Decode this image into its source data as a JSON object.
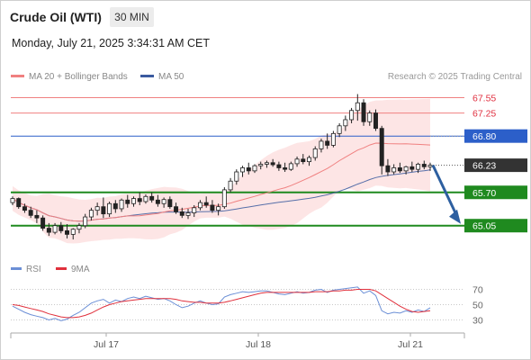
{
  "header": {
    "title": "Crude Oil (WTI)",
    "timeframe": "30 MIN",
    "timestamp": "Monday, July 21, 2025 3:34:31 AM CET"
  },
  "legend": {
    "ma20": "MA 20 + Bollinger Bands",
    "ma50": "MA 50",
    "credit": "Research © 2025 Trading Central"
  },
  "rsi_legend": {
    "rsi": "RSI",
    "ma": "9MA"
  },
  "colors": {
    "candle": "#222222",
    "up_candle": "#ffffff",
    "ma20": "#f08080",
    "bollinger_fill": "#fde0e0",
    "ma50": "#3a5a9f",
    "resistance": "#f08080",
    "pivot": "#2c5fc9",
    "support": "#1f8a1f",
    "current_price_tag": "#333333",
    "arrow": "#2d5fa0",
    "rsi": "#6b8fd6",
    "rsi_ma": "#e0303c"
  },
  "chart_data": [
    {
      "type": "candlestick",
      "x_ticks": [
        "Jul 17",
        "Jul 18",
        "Jul 21"
      ],
      "ylim": [
        64.5,
        67.7
      ],
      "levels": [
        {
          "label": "67.55",
          "value": 67.55,
          "kind": "resistance"
        },
        {
          "label": "67.25",
          "value": 67.25,
          "kind": "resistance"
        },
        {
          "label": "66.80",
          "value": 66.8,
          "kind": "pivot"
        },
        {
          "label": "66.23",
          "value": 66.23,
          "kind": "current"
        },
        {
          "label": "65.70",
          "value": 65.7,
          "kind": "support"
        },
        {
          "label": "65.05",
          "value": 65.05,
          "kind": "support"
        }
      ],
      "current_price": 66.23,
      "forecast_arrow": {
        "from": 66.23,
        "to": 65.05
      },
      "ohlc": [
        [
          65.5,
          65.62,
          65.45,
          65.58
        ],
        [
          65.58,
          65.6,
          65.38,
          65.42
        ],
        [
          65.42,
          65.48,
          65.3,
          65.35
        ],
        [
          65.35,
          65.42,
          65.2,
          65.25
        ],
        [
          65.25,
          65.35,
          65.1,
          65.2
        ],
        [
          65.2,
          65.25,
          64.95,
          65.0
        ],
        [
          65.0,
          65.1,
          64.85,
          64.92
        ],
        [
          64.92,
          65.1,
          64.88,
          65.05
        ],
        [
          65.05,
          65.12,
          64.9,
          64.95
        ],
        [
          64.95,
          65.08,
          64.8,
          64.88
        ],
        [
          64.88,
          65.0,
          64.78,
          64.98
        ],
        [
          64.98,
          65.1,
          64.9,
          65.05
        ],
        [
          65.05,
          65.28,
          65.0,
          65.22
        ],
        [
          65.22,
          65.4,
          65.15,
          65.35
        ],
        [
          65.35,
          65.5,
          65.25,
          65.42
        ],
        [
          65.42,
          65.6,
          65.2,
          65.28
        ],
        [
          65.28,
          65.52,
          65.22,
          65.48
        ],
        [
          65.48,
          65.55,
          65.3,
          65.38
        ],
        [
          65.38,
          65.58,
          65.32,
          65.55
        ],
        [
          65.55,
          65.65,
          65.4,
          65.48
        ],
        [
          65.48,
          65.62,
          65.42,
          65.58
        ],
        [
          65.58,
          65.7,
          65.45,
          65.52
        ],
        [
          65.52,
          65.66,
          65.48,
          65.62
        ],
        [
          65.62,
          65.7,
          65.5,
          65.55
        ],
        [
          65.55,
          65.65,
          65.42,
          65.48
        ],
        [
          65.48,
          65.6,
          65.4,
          65.56
        ],
        [
          65.56,
          65.62,
          65.38,
          65.42
        ],
        [
          65.42,
          65.5,
          65.28,
          65.32
        ],
        [
          65.32,
          65.4,
          65.2,
          65.25
        ],
        [
          65.25,
          65.38,
          65.18,
          65.3
        ],
        [
          65.3,
          65.45,
          65.22,
          65.4
        ],
        [
          65.4,
          65.55,
          65.35,
          65.5
        ],
        [
          65.5,
          65.62,
          65.4,
          65.45
        ],
        [
          65.45,
          65.55,
          65.3,
          65.35
        ],
        [
          65.35,
          65.48,
          65.25,
          65.42
        ],
        [
          65.42,
          65.8,
          65.38,
          65.75
        ],
        [
          65.75,
          65.98,
          65.7,
          65.92
        ],
        [
          65.92,
          66.15,
          65.85,
          66.1
        ],
        [
          66.1,
          66.22,
          66.0,
          66.18
        ],
        [
          66.18,
          66.28,
          66.05,
          66.12
        ],
        [
          66.12,
          66.25,
          66.08,
          66.22
        ],
        [
          66.22,
          66.3,
          66.15,
          66.25
        ],
        [
          66.25,
          66.32,
          66.18,
          66.28
        ],
        [
          66.28,
          66.35,
          66.2,
          66.24
        ],
        [
          66.24,
          66.3,
          66.12,
          66.18
        ],
        [
          66.18,
          66.28,
          66.1,
          66.15
        ],
        [
          66.15,
          66.3,
          66.12,
          66.26
        ],
        [
          66.26,
          66.4,
          66.2,
          66.35
        ],
        [
          66.35,
          66.45,
          66.25,
          66.3
        ],
        [
          66.3,
          66.42,
          66.22,
          66.38
        ],
        [
          66.38,
          66.6,
          66.32,
          66.55
        ],
        [
          66.55,
          66.75,
          66.48,
          66.7
        ],
        [
          66.7,
          66.85,
          66.55,
          66.62
        ],
        [
          66.62,
          66.9,
          66.58,
          66.85
        ],
        [
          66.85,
          67.05,
          66.78,
          67.0
        ],
        [
          67.0,
          67.2,
          66.9,
          67.12
        ],
        [
          67.12,
          67.35,
          67.05,
          67.3
        ],
        [
          67.3,
          67.62,
          67.1,
          67.45
        ],
        [
          67.45,
          67.52,
          67.0,
          67.08
        ],
        [
          67.08,
          67.3,
          67.0,
          67.25
        ],
        [
          67.25,
          67.32,
          66.9,
          66.95
        ],
        [
          66.95,
          67.0,
          66.05,
          66.22
        ],
        [
          66.22,
          66.35,
          66.02,
          66.1
        ],
        [
          66.1,
          66.25,
          66.05,
          66.18
        ],
        [
          66.18,
          66.28,
          66.08,
          66.12
        ],
        [
          66.12,
          66.22,
          66.05,
          66.2
        ],
        [
          66.2,
          66.3,
          66.1,
          66.15
        ],
        [
          66.15,
          66.28,
          66.08,
          66.25
        ],
        [
          66.25,
          66.32,
          66.15,
          66.2
        ],
        [
          66.2,
          66.28,
          66.12,
          66.23
        ]
      ]
    },
    {
      "type": "line",
      "name": "RSI",
      "y_ticks": [
        70,
        50,
        30
      ],
      "ylim": [
        20,
        80
      ],
      "rsi": [
        48,
        44,
        40,
        37,
        35,
        33,
        30,
        32,
        29,
        31,
        36,
        40,
        46,
        52,
        55,
        57,
        52,
        56,
        54,
        58,
        60,
        58,
        61,
        59,
        57,
        58,
        55,
        50,
        46,
        48,
        52,
        55,
        52,
        50,
        51,
        60,
        63,
        65,
        67,
        66,
        67,
        68,
        68,
        66,
        64,
        63,
        65,
        67,
        65,
        66,
        69,
        70,
        66,
        69,
        70,
        71,
        72,
        73,
        65,
        68,
        62,
        42,
        38,
        40,
        39,
        42,
        40,
        43,
        41,
        46
      ],
      "rsi_9ma": [
        50,
        49,
        47,
        45,
        43,
        41,
        38,
        36,
        34,
        33,
        33,
        34,
        36,
        39,
        43,
        47,
        50,
        52,
        54,
        55,
        56,
        57,
        58,
        58,
        58,
        58,
        58,
        57,
        55,
        54,
        53,
        53,
        52,
        52,
        52,
        53,
        55,
        57,
        59,
        61,
        63,
        65,
        66,
        66,
        66,
        66,
        66,
        66,
        66,
        66,
        67,
        67,
        67,
        68,
        68,
        69,
        69,
        70,
        70,
        70,
        68,
        63,
        58,
        53,
        48,
        44,
        41,
        40,
        41,
        42
      ]
    }
  ]
}
